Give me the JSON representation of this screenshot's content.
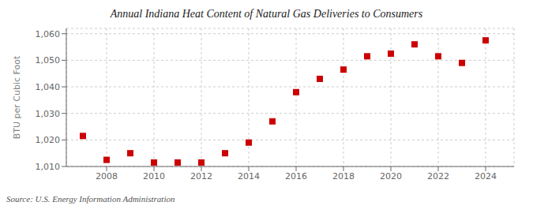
{
  "chart_data": {
    "type": "scatter",
    "title": "Annual Indiana Heat Content of Natural Gas Deliveries to Consumers",
    "ylabel": "BTU per Cubic Foot",
    "source": "Source: U.S. Energy Information Administration",
    "x": [
      2007,
      2008,
      2009,
      2010,
      2011,
      2012,
      2013,
      2014,
      2015,
      2016,
      2017,
      2018,
      2019,
      2020,
      2021,
      2022,
      2023,
      2024
    ],
    "values": [
      1021.5,
      1012.5,
      1015.0,
      1011.5,
      1011.5,
      1011.5,
      1015.0,
      1019.0,
      1027.0,
      1038.0,
      1043.0,
      1046.5,
      1051.5,
      1052.5,
      1056.0,
      1051.5,
      1049.0,
      1057.5
    ],
    "color": "#cc0000",
    "marker": "square",
    "xlim": [
      2006.3,
      2025.2
    ],
    "xticks": [
      2008,
      2010,
      2012,
      2014,
      2016,
      2018,
      2020,
      2022,
      2024
    ],
    "ylim": [
      1010,
      1062
    ],
    "yticks": [
      {
        "value": 1010,
        "label": "1,010"
      },
      {
        "value": 1020,
        "label": "1,020"
      },
      {
        "value": 1030,
        "label": "1,030"
      },
      {
        "value": 1040,
        "label": "1,040"
      },
      {
        "value": 1050,
        "label": "1,050"
      },
      {
        "value": 1060,
        "label": "1,060"
      }
    ],
    "grid": true
  }
}
